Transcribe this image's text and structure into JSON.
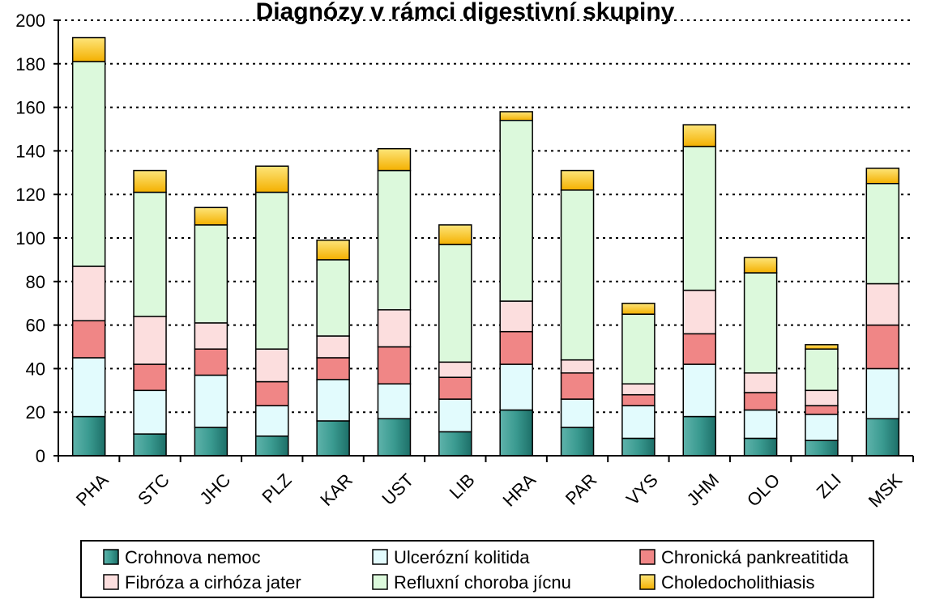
{
  "chart_data": {
    "type": "bar",
    "stacked": true,
    "title": "Diagnózy v rámci digestivní skupiny",
    "xlabel": "",
    "ylabel": "",
    "ylim": [
      0,
      200
    ],
    "yticks": [
      0,
      20,
      40,
      60,
      80,
      100,
      120,
      140,
      160,
      180,
      200
    ],
    "grid": true,
    "legend_position": "bottom",
    "categories": [
      "PHA",
      "STC",
      "JHC",
      "PLZ",
      "KAR",
      "UST",
      "LIB",
      "HRA",
      "PAR",
      "VYS",
      "JHM",
      "OLO",
      "ZLI",
      "MSK"
    ],
    "series": [
      {
        "name": "Crohnova nemoc",
        "color": "#2a8a82",
        "values": [
          18,
          10,
          13,
          9,
          16,
          17,
          11,
          21,
          13,
          8,
          18,
          8,
          7,
          17
        ]
      },
      {
        "name": "Ulcerózní kolitida",
        "color": "#e2fbfd",
        "values": [
          27,
          20,
          24,
          14,
          19,
          16,
          15,
          21,
          13,
          15,
          24,
          13,
          12,
          23
        ]
      },
      {
        "name": "Chronická pankreatitida",
        "color": "#f08686",
        "values": [
          17,
          12,
          12,
          11,
          10,
          17,
          10,
          15,
          12,
          5,
          14,
          8,
          4,
          20
        ]
      },
      {
        "name": "Fibróza a cirhóza jater",
        "color": "#fcdede",
        "values": [
          25,
          22,
          12,
          15,
          10,
          17,
          7,
          14,
          6,
          5,
          20,
          9,
          7,
          19
        ]
      },
      {
        "name": "Refluxní choroba jícnu",
        "color": "#dcf9dc",
        "values": [
          94,
          57,
          45,
          72,
          35,
          64,
          54,
          83,
          78,
          32,
          66,
          46,
          19,
          46
        ]
      },
      {
        "name": "Choledocholithiasis",
        "color": "#f7c31c",
        "values": [
          11,
          10,
          8,
          12,
          9,
          10,
          9,
          4,
          9,
          5,
          10,
          7,
          2,
          7
        ]
      }
    ]
  }
}
